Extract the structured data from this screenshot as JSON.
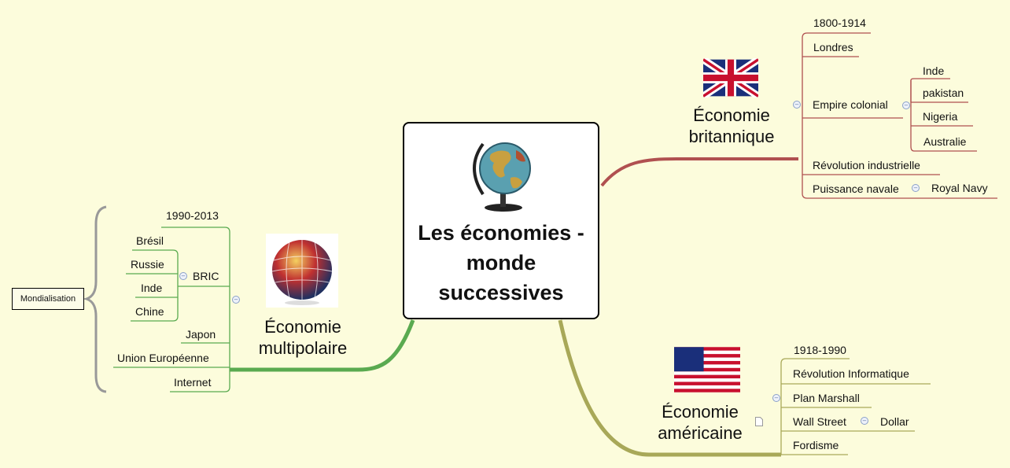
{
  "central": {
    "title": "Les économies - monde successives",
    "icon": "globe-icon"
  },
  "britannique": {
    "title": "Économie britannique",
    "icon": "uk-flag-icon",
    "period": "1800-1914",
    "capital": "Londres",
    "empire": {
      "label": "Empire colonial",
      "items": [
        "Inde",
        "pakistan",
        "Nigeria",
        "Australie"
      ]
    },
    "revolution": "Révolution industrielle",
    "navale": {
      "label": "Puissance navale",
      "child": "Royal Navy"
    }
  },
  "americaine": {
    "title": "Économie américaine",
    "icon": "us-flag-icon",
    "period": "1918-1990",
    "items": [
      "Révolution Informatique",
      "Plan Marshall"
    ],
    "wallstreet": {
      "label": "Wall Street",
      "child": "Dollar"
    },
    "last": "Fordisme"
  },
  "multipolaire": {
    "title": "Économie multipolaire",
    "icon": "flag-globe-icon",
    "period": "1990-2013",
    "bric": {
      "label": "BRIC",
      "items": [
        "Brésil",
        "Russie",
        "Inde",
        "Chine"
      ]
    },
    "items": [
      "Japon",
      "Union Européenne",
      "Internet"
    ],
    "boundary": "Mondialisation"
  },
  "colors": {
    "uk_branch": "#b05050",
    "us_branch": "#a8a858",
    "multi_branch": "#5aaa50",
    "background": "#fcfcdc"
  }
}
